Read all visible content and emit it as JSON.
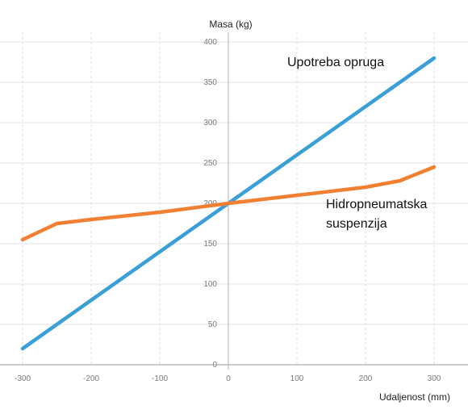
{
  "chart_data": {
    "type": "line",
    "title": "",
    "xlabel": "Udaljenost (mm)",
    "ylabel": "Masa (kg)",
    "xlim": [
      -300,
      300
    ],
    "ylim": [
      0,
      400
    ],
    "x_ticks": [
      -300,
      -200,
      -100,
      0,
      100,
      200,
      300
    ],
    "y_ticks": [
      0,
      50,
      100,
      150,
      200,
      250,
      300,
      350,
      400
    ],
    "grid": true,
    "series": [
      {
        "name": "Upotreba opruga",
        "color": "#3a9fd6",
        "points": [
          [
            -300,
            20
          ],
          [
            300,
            380
          ]
        ]
      },
      {
        "name": "Hidropneumatska suspenzija",
        "color": "#f28033",
        "points": [
          [
            -300,
            155
          ],
          [
            -280,
            163
          ],
          [
            -250,
            175
          ],
          [
            -200,
            180
          ],
          [
            -100,
            189
          ],
          [
            0,
            200
          ],
          [
            100,
            210
          ],
          [
            200,
            220
          ],
          [
            250,
            228
          ],
          [
            300,
            245
          ]
        ]
      }
    ],
    "annotations": [
      {
        "text": "Upotreba opruga",
        "series": 0
      },
      {
        "text": "Hidropneumatska",
        "series": 1
      },
      {
        "text": "suspenzija",
        "series": 1
      }
    ]
  }
}
